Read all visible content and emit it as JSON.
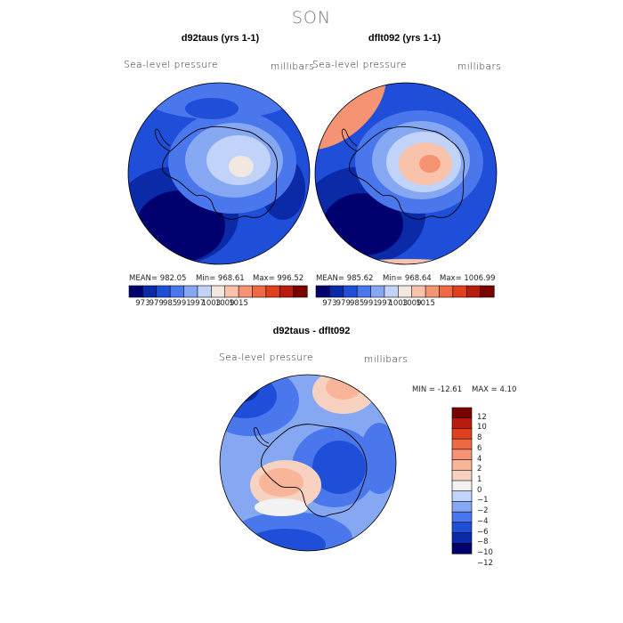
{
  "figure": {
    "season": "SON",
    "diff_title": "d92taus - dflt092",
    "diff_field": "Sea-level pressure",
    "diff_units": "millibars",
    "diff_min_label": "MIN = -12.61",
    "diff_max_label": "MAX =   4.10"
  },
  "panels": [
    {
      "title": "d92taus (yrs 1-1)",
      "field": "Sea-level pressure",
      "units": "millibars",
      "mean_label": "MEAN= 982.05",
      "min_label": "Min= 968.61",
      "max_label": "Max= 996.52"
    },
    {
      "title": "dflt092 (yrs 1-1)",
      "field": "Sea-level pressure",
      "units": "millibars",
      "mean_label": "MEAN= 985.62",
      "min_label": "Min= 968.64",
      "max_label": "Max= 1006.99"
    }
  ],
  "colors": {
    "abs_scale": [
      "#00006e",
      "#0a2aa8",
      "#1f4fd8",
      "#4a78ec",
      "#86a8f2",
      "#c1d3f8",
      "#f2e8e0",
      "#f8c3aa",
      "#f59373",
      "#ee6a44",
      "#e0401e",
      "#b81c0c",
      "#7a0000"
    ],
    "diff_scale": [
      "#00006e",
      "#0a2aa8",
      "#1f4fd8",
      "#4a78ec",
      "#86a8f2",
      "#c1d3f8",
      "#f2f2f2",
      "#f8d2c0",
      "#f8b59a",
      "#f59373",
      "#ee6a44",
      "#e0401e",
      "#b81c0c",
      "#7a0000"
    ],
    "coast": "#000000"
  },
  "chart_data": [
    {
      "type": "heatmap",
      "title": "d92taus (yrs 1-1)",
      "subtitle": "Sea-level pressure",
      "units": "millibars",
      "mean": 982.05,
      "min": 968.61,
      "max": 996.52,
      "colorbar_ticks": [
        "973",
        "979",
        "985",
        "991",
        "997",
        "1003",
        "1009",
        "1015"
      ],
      "colorbar_levels": [
        973,
        979,
        985,
        991,
        997,
        1003,
        1009,
        1015
      ]
    },
    {
      "type": "heatmap",
      "title": "dflt092 (yrs 1-1)",
      "subtitle": "Sea-level pressure",
      "units": "millibars",
      "mean": 985.62,
      "min": 968.64,
      "max": 1006.99,
      "colorbar_ticks": [
        "973",
        "979",
        "985",
        "991",
        "997",
        "1003",
        "1009",
        "1015"
      ],
      "colorbar_levels": [
        973,
        979,
        985,
        991,
        997,
        1003,
        1009,
        1015
      ]
    },
    {
      "type": "heatmap",
      "title": "d92taus - dflt092",
      "subtitle": "Sea-level pressure",
      "units": "millibars",
      "min": -12.61,
      "max": 4.1,
      "colorbar_ticks": [
        "12",
        "10",
        "8",
        "6",
        "4",
        "2",
        "1",
        "0",
        "−1",
        "−2",
        "−4",
        "−6",
        "−8",
        "−10",
        "−12"
      ],
      "colorbar_levels": [
        12,
        10,
        8,
        6,
        4,
        2,
        1,
        0,
        -1,
        -2,
        -4,
        -6,
        -8,
        -10,
        -12
      ]
    }
  ]
}
